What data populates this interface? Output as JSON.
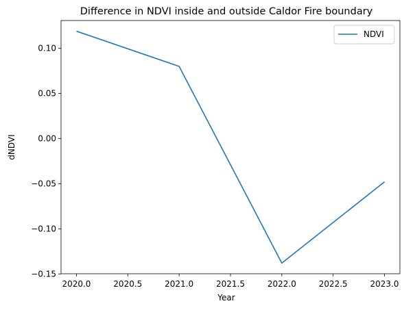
{
  "chart_data": {
    "type": "line",
    "title": "Difference in NDVI inside and outside Caldor Fire boundary",
    "xlabel": "Year",
    "ylabel": "dNDVI",
    "xlim": [
      1.985,
      3.015
    ],
    "ylim": [
      -0.1498,
      0.1308
    ],
    "xticks": [
      2020.0,
      2020.5,
      2021.0,
      2021.5,
      2022.0,
      2022.5,
      2023.0
    ],
    "xtick_labels": [
      "2020.0",
      "2020.5",
      "2021.0",
      "2021.5",
      "2022.0",
      "2022.5",
      "2023.0"
    ],
    "yticks": [
      -0.15,
      -0.1,
      -0.05,
      0.0,
      0.05,
      0.1
    ],
    "ytick_labels": [
      "−0.15",
      "−0.10",
      "−0.05",
      "0.00",
      "0.05",
      "0.10"
    ],
    "x": [
      2020,
      2021,
      2022,
      2023
    ],
    "series": [
      {
        "name": "NDVI",
        "color": "#1f77b4",
        "values": [
          0.119,
          0.08,
          -0.138,
          -0.048
        ]
      }
    ],
    "grid": false,
    "legend": "top-right"
  }
}
